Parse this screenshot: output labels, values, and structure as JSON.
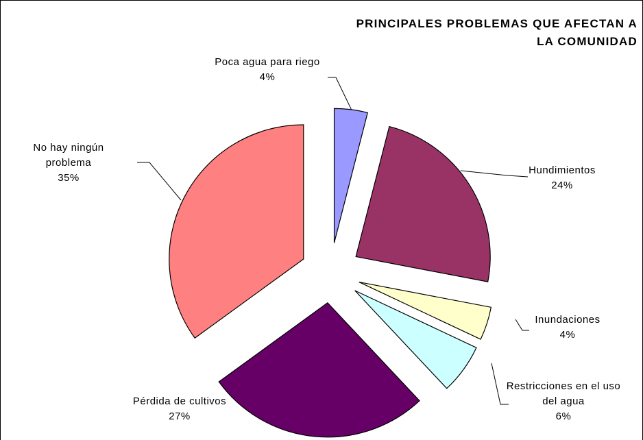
{
  "chart_data": {
    "type": "pie",
    "title": "PRINCIPALES PROBLEMAS QUE AFECTAN A LA COMUNIDAD",
    "categories": [
      "Poca agua para riego",
      "Hundimientos",
      "Inundaciones",
      "Restricciones en el uso del agua",
      "Pérdida de cultivos",
      "No hay ningún problema"
    ],
    "values": [
      4,
      24,
      4,
      6,
      27,
      35
    ],
    "value_labels": [
      "4%",
      "24%",
      "4%",
      "6%",
      "27%",
      "35%"
    ],
    "colors": [
      "#9999ff",
      "#993366",
      "#ffffcc",
      "#ccffff",
      "#660066",
      "#ff8080"
    ]
  }
}
